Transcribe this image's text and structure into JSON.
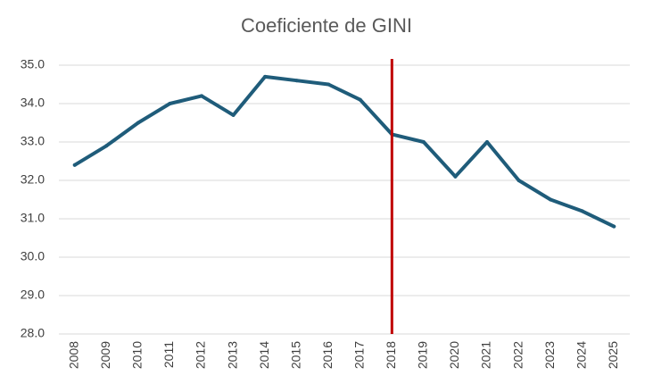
{
  "chart_data": {
    "type": "line",
    "title": "Coeficiente de GINI",
    "xlabel": "",
    "ylabel": "",
    "ylim": [
      28.0,
      35.0
    ],
    "y_ticks": [
      "28.0",
      "29.0",
      "30.0",
      "31.0",
      "32.0",
      "33.0",
      "34.0",
      "35.0"
    ],
    "grid": "horizontal",
    "categories": [
      "2008",
      "2009",
      "2010",
      "2011",
      "2012",
      "2013",
      "2014",
      "2015",
      "2016",
      "2017",
      "2018",
      "2019",
      "2020",
      "2021",
      "2022",
      "2023",
      "2024",
      "2025"
    ],
    "series": [
      {
        "values": [
          32.4,
          32.9,
          33.5,
          34.0,
          34.2,
          33.7,
          34.7,
          34.6,
          34.5,
          34.1,
          33.2,
          33.0,
          32.1,
          33.0,
          32.0,
          31.5,
          31.2,
          30.8
        ]
      }
    ],
    "reference_line": {
      "at_category": "2018",
      "orientation": "vertical"
    },
    "colors": {
      "line": "#1f5c7a",
      "reference_line": "#c00000",
      "grid": "#d9d9d9"
    }
  }
}
